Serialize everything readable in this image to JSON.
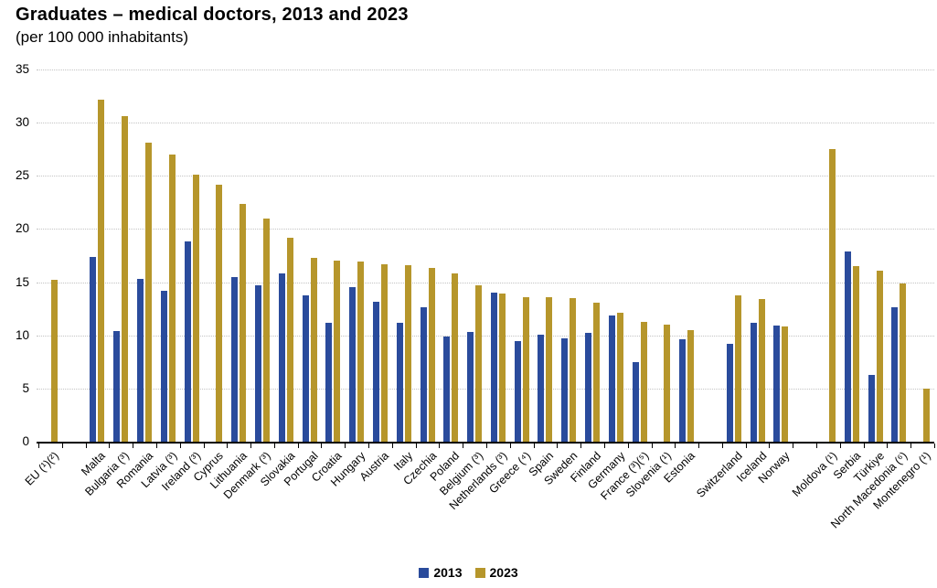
{
  "title": "Graduates – medical doctors, 2013 and 2023",
  "subtitle": "(per 100 000 inhabitants)",
  "chart_data": {
    "type": "bar",
    "title": "Graduates – medical doctors, 2013 and 2023",
    "subtitle": "(per 100 000 inhabitants)",
    "xlabel": "",
    "ylabel": "per 100 000 inhabitants",
    "ylim": [
      0,
      35
    ],
    "yticks": [
      0,
      5,
      10,
      15,
      20,
      25,
      30,
      35
    ],
    "grid": "horizontal-dotted",
    "legend_position": "bottom-center",
    "categories": [
      "EU (¹)(²)",
      "Malta",
      "Bulgaria (³)",
      "Romania",
      "Latvia (³)",
      "Ireland (³)",
      "Cyprus",
      "Lithuania",
      "Denmark (³)",
      "Slovakia",
      "Portugal",
      "Croatia",
      "Hungary",
      "Austria",
      "Italy",
      "Czechia",
      "Poland",
      "Belgium (³)",
      "Netherlands (³)",
      "Greece (⁴)",
      "Spain",
      "Sweden",
      "Finland",
      "Germany",
      "France (³)(⁵)",
      "Slovenia (¹)",
      "Estonia",
      "Switzerland",
      "Iceland",
      "Norway",
      "Moldova (¹)",
      "Serbia",
      "Türkiye",
      "North Macedonia (⁶)",
      "Montenegro (¹)"
    ],
    "gap_after_indices": [
      0,
      26,
      29
    ],
    "series": [
      {
        "name": "2013",
        "color": "#2a4b9c",
        "values": [
          null,
          17.4,
          10.4,
          15.3,
          14.2,
          18.8,
          null,
          15.5,
          14.7,
          15.8,
          13.8,
          11.2,
          14.5,
          13.2,
          11.2,
          12.6,
          9.9,
          10.3,
          14.0,
          9.5,
          10.1,
          9.7,
          10.2,
          11.9,
          7.5,
          null,
          9.6,
          9.2,
          11.2,
          10.9,
          null,
          17.9,
          6.3,
          12.6,
          null
        ]
      },
      {
        "name": "2023",
        "color": "#b6962b",
        "values": [
          15.2,
          32.2,
          30.6,
          28.1,
          27.0,
          25.1,
          24.2,
          22.4,
          21.0,
          19.2,
          17.3,
          17.0,
          16.9,
          16.7,
          16.6,
          16.3,
          15.8,
          14.7,
          13.9,
          13.6,
          13.6,
          13.5,
          13.1,
          12.1,
          11.3,
          11.0,
          10.5,
          13.8,
          13.4,
          10.8,
          27.5,
          16.5,
          16.1,
          14.9,
          5.0
        ]
      }
    ]
  }
}
